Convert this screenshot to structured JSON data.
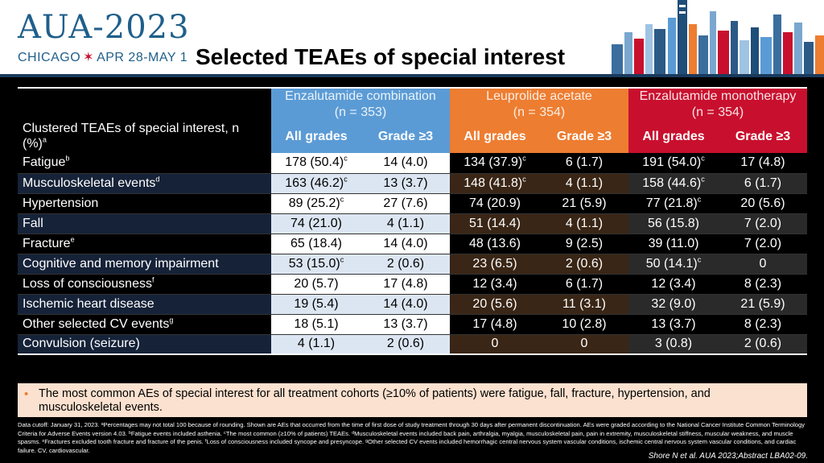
{
  "header": {
    "logo_main": "AUA-2023",
    "logo_city": "CHICAGO",
    "logo_star": "✶",
    "logo_dates": "APR 28-MAY 1",
    "title": "Selected TEAEs of special interest"
  },
  "table": {
    "corner_label": "Clustered TEAEs of special interest, n (%)",
    "corner_sup": "a",
    "groups": [
      {
        "name": "Enzalutamide combination",
        "n": "(n = 353)"
      },
      {
        "name": "Leuprolide acetate",
        "n": "(n = 354)"
      },
      {
        "name": "Enzalutamide monotherapy",
        "n": "(n = 354)"
      }
    ],
    "subheaders": [
      "All grades",
      "Grade ≥3",
      "All grades",
      "Grade ≥3",
      "All grades",
      "Grade ≥3"
    ],
    "rows": [
      {
        "label": "Fatigue",
        "sup": "b",
        "cells": [
          {
            "v": "178 (50.4)",
            "s": "c"
          },
          {
            "v": "14 (4.0)",
            "s": ""
          },
          {
            "v": "134 (37.9)",
            "s": "c"
          },
          {
            "v": "6 (1.7)",
            "s": ""
          },
          {
            "v": "191 (54.0)",
            "s": "c"
          },
          {
            "v": "17 (4.8)",
            "s": ""
          }
        ]
      },
      {
        "label": "Musculoskeletal events",
        "sup": "d",
        "cells": [
          {
            "v": "163 (46.2)",
            "s": "c"
          },
          {
            "v": "13 (3.7)",
            "s": ""
          },
          {
            "v": "148 (41.8)",
            "s": "c"
          },
          {
            "v": "4 (1.1)",
            "s": ""
          },
          {
            "v": "158 (44.6)",
            "s": "c"
          },
          {
            "v": "6 (1.7)",
            "s": ""
          }
        ]
      },
      {
        "label": "Hypertension",
        "sup": "",
        "cells": [
          {
            "v": "89 (25.2)",
            "s": "c"
          },
          {
            "v": "27 (7.6)",
            "s": ""
          },
          {
            "v": "74 (20.9)",
            "s": ""
          },
          {
            "v": "21 (5.9)",
            "s": ""
          },
          {
            "v": "77 (21.8)",
            "s": "c"
          },
          {
            "v": "20 (5.6)",
            "s": ""
          }
        ]
      },
      {
        "label": "Fall",
        "sup": "",
        "cells": [
          {
            "v": "74 (21.0)",
            "s": ""
          },
          {
            "v": "4 (1.1)",
            "s": ""
          },
          {
            "v": "51 (14.4)",
            "s": ""
          },
          {
            "v": "4 (1.1)",
            "s": ""
          },
          {
            "v": "56 (15.8)",
            "s": ""
          },
          {
            "v": "7 (2.0)",
            "s": ""
          }
        ]
      },
      {
        "label": "Fracture",
        "sup": "e",
        "cells": [
          {
            "v": "65 (18.4)",
            "s": ""
          },
          {
            "v": "14 (4.0)",
            "s": ""
          },
          {
            "v": "48 (13.6)",
            "s": ""
          },
          {
            "v": "9 (2.5)",
            "s": ""
          },
          {
            "v": "39 (11.0)",
            "s": ""
          },
          {
            "v": "7 (2.0)",
            "s": ""
          }
        ]
      },
      {
        "label": "Cognitive and memory impairment",
        "sup": "",
        "cells": [
          {
            "v": "53 (15.0)",
            "s": "c"
          },
          {
            "v": "2 (0.6)",
            "s": ""
          },
          {
            "v": "23 (6.5)",
            "s": ""
          },
          {
            "v": "2 (0.6)",
            "s": ""
          },
          {
            "v": "50 (14.1)",
            "s": "c"
          },
          {
            "v": "0",
            "s": ""
          }
        ]
      },
      {
        "label": "Loss of consciousness",
        "sup": "f",
        "cells": [
          {
            "v": "20 (5.7)",
            "s": ""
          },
          {
            "v": "17 (4.8)",
            "s": ""
          },
          {
            "v": "12 (3.4)",
            "s": ""
          },
          {
            "v": "6 (1.7)",
            "s": ""
          },
          {
            "v": "12 (3.4)",
            "s": ""
          },
          {
            "v": "8 (2.3)",
            "s": ""
          }
        ]
      },
      {
        "label": "Ischemic heart disease",
        "sup": "",
        "cells": [
          {
            "v": "19 (5.4)",
            "s": ""
          },
          {
            "v": "14 (4.0)",
            "s": ""
          },
          {
            "v": "20 (5.6)",
            "s": ""
          },
          {
            "v": "11 (3.1)",
            "s": ""
          },
          {
            "v": "32 (9.0)",
            "s": ""
          },
          {
            "v": "21 (5.9)",
            "s": ""
          }
        ]
      },
      {
        "label": "Other selected CV events",
        "sup": "g",
        "cells": [
          {
            "v": "18 (5.1)",
            "s": ""
          },
          {
            "v": "13 (3.7)",
            "s": ""
          },
          {
            "v": "17 (4.8)",
            "s": ""
          },
          {
            "v": "10 (2.8)",
            "s": ""
          },
          {
            "v": "13 (3.7)",
            "s": ""
          },
          {
            "v": "8 (2.3)",
            "s": ""
          }
        ]
      },
      {
        "label": "Convulsion (seizure)",
        "sup": "",
        "cells": [
          {
            "v": "4 (1.1)",
            "s": ""
          },
          {
            "v": "2 (0.6)",
            "s": ""
          },
          {
            "v": "0",
            "s": ""
          },
          {
            "v": "0",
            "s": ""
          },
          {
            "v": "3 (0.8)",
            "s": ""
          },
          {
            "v": "2 (0.6)",
            "s": ""
          }
        ]
      }
    ]
  },
  "note": {
    "bullet": "•",
    "text": "The most common AEs of special interest for all treatment cohorts (≥10% of patients) were fatigue, fall, fracture, hypertension, and musculoskeletal events."
  },
  "footnote": "Data cutoff: January 31, 2023. ᵃPercentages may not total 100 because of rounding. Shown are AEs that occurred from the time of first dose of study treatment through 30 days after permanent discontinuation. AEs were graded according to the National Cancer Institute Common Terminology Criteria for Adverse Events version 4.03. ᵇFatigue events included asthenia. ᶜThe most common (≥10% of patients) TEAEs. ᵈMusculoskeletal events included back pain, arthralgia, myalgia, musculoskeletal pain, pain in extremity, musculoskeletal stiffness, muscular weakness, and muscle spasms. ᵉFractures excluded tooth fracture and fracture of the penis. ᶠLoss of consciousness included syncope and presyncope. ᵍOther selected CV events included hemorrhagic central nervous system vascular conditions, ischemic central nervous system vascular conditions, and cardiac failure. CV, cardiovascular.",
  "citation": "Shore N et al. AUA 2023;Abstract LBA02-09.",
  "colors": {
    "enza_combo": "#5b9bd5",
    "leuprolide": "#ed7d31",
    "enza_mono": "#c8102e",
    "logo": "#1f5f8b"
  },
  "icons": [
    "chicago-skyline-icon"
  ]
}
